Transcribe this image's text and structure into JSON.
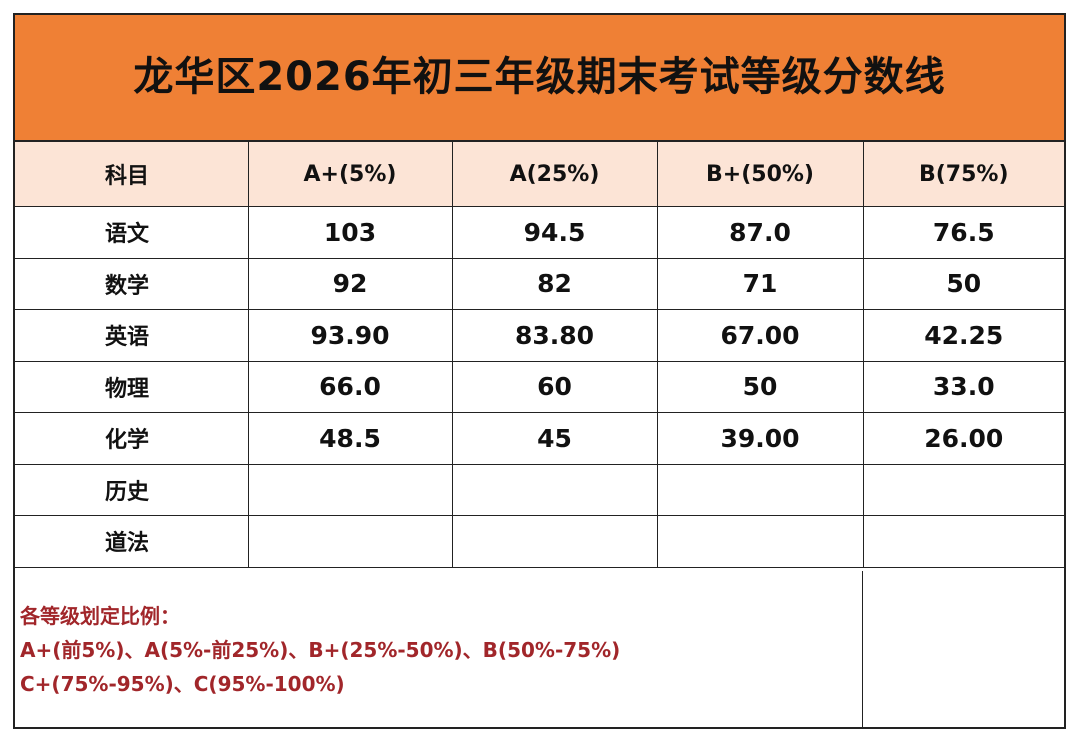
{
  "title": "龙华区2026年初三年级期末考试等级分数线",
  "table": {
    "headers": [
      "科目",
      "A+(5%)",
      "A(25%)",
      "B+(50%)",
      "B(75%)"
    ],
    "rows": [
      {
        "subject": "语文",
        "values": [
          "103",
          "94.5",
          "87.0",
          "76.5"
        ]
      },
      {
        "subject": "数学",
        "values": [
          "92",
          "82",
          "71",
          "50"
        ]
      },
      {
        "subject": "英语",
        "values": [
          "93.90",
          "83.80",
          "67.00",
          "42.25"
        ]
      },
      {
        "subject": "物理",
        "values": [
          "66.0",
          "60",
          "50",
          "33.0"
        ]
      },
      {
        "subject": "化学",
        "values": [
          "48.5",
          "45",
          "39.00",
          "26.00"
        ]
      },
      {
        "subject": "历史",
        "values": [
          "",
          "",
          "",
          ""
        ]
      },
      {
        "subject": "道法",
        "values": [
          "",
          "",
          "",
          ""
        ]
      }
    ]
  },
  "notes": {
    "heading": "各等级划定比例：",
    "line1": "A+(前5%)、A(5%-前25%)、B+(25%-50%)、B(50%-75%)",
    "line2": "C+(75%-95%)、C(95%-100%)"
  },
  "colors": {
    "title_background": "#ef8035",
    "header_background": "#fce4d6",
    "note_text": "#a1262a"
  }
}
